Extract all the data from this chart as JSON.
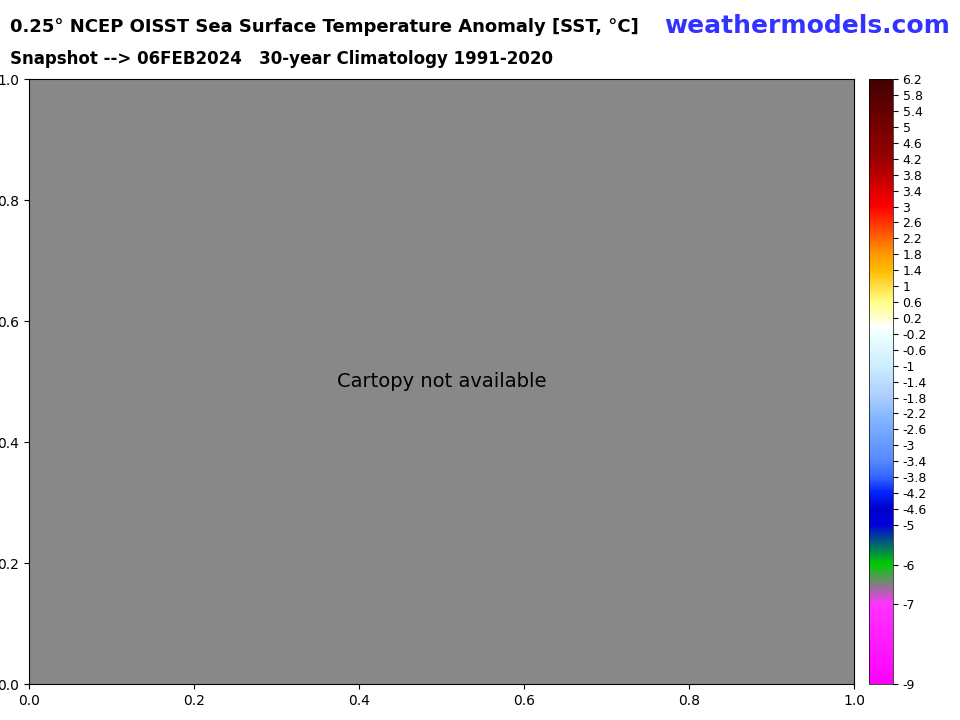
{
  "title_line1": "0.25° NCEP OISST Sea Surface Temperature Anomaly [SST, °C]",
  "title_line2": "Snapshot --> 06FEB2024   30-year Climatology 1991-2020",
  "watermark": "weathermodels.com",
  "colorbar_ticks": [
    6.2,
    5.8,
    5.4,
    5,
    4.6,
    4.2,
    3.8,
    3.4,
    3,
    2.6,
    2.2,
    1.8,
    1.4,
    1,
    0.6,
    0.2,
    -0.2,
    -0.6,
    -1,
    -1.4,
    -1.8,
    -2.2,
    -2.6,
    -3,
    -3.4,
    -3.8,
    -4.2,
    -4.6,
    -5,
    -6,
    -7,
    -9
  ],
  "colorbar_colors": [
    "#ff0000",
    "#ff1a00",
    "#ff3300",
    "#ff4d00",
    "#ff6600",
    "#cc5500",
    "#995500",
    "#7a3300",
    "#660000",
    "#cc0000",
    "#e60000",
    "#ff3300",
    "#ff6600",
    "#ff8c00",
    "#ffb300",
    "#ffd700",
    "#ffffcc",
    "#ccffff",
    "#99ddff",
    "#66bbff",
    "#3399ff",
    "#0066ff",
    "#0033cc",
    "#0000cc",
    "#000099",
    "#9900cc",
    "#cc00cc",
    "#ff00ff",
    "#ff33ff",
    "#00cc00",
    "#ff00ff",
    "#ff66ff"
  ],
  "vmin": -9,
  "vmax": 6.2,
  "map_bg_color": "#888888",
  "land_color": "#777777",
  "title_fontsize": 13,
  "title_color": "#000000",
  "watermark_color": "#3333ff",
  "watermark_fontsize": 18
}
